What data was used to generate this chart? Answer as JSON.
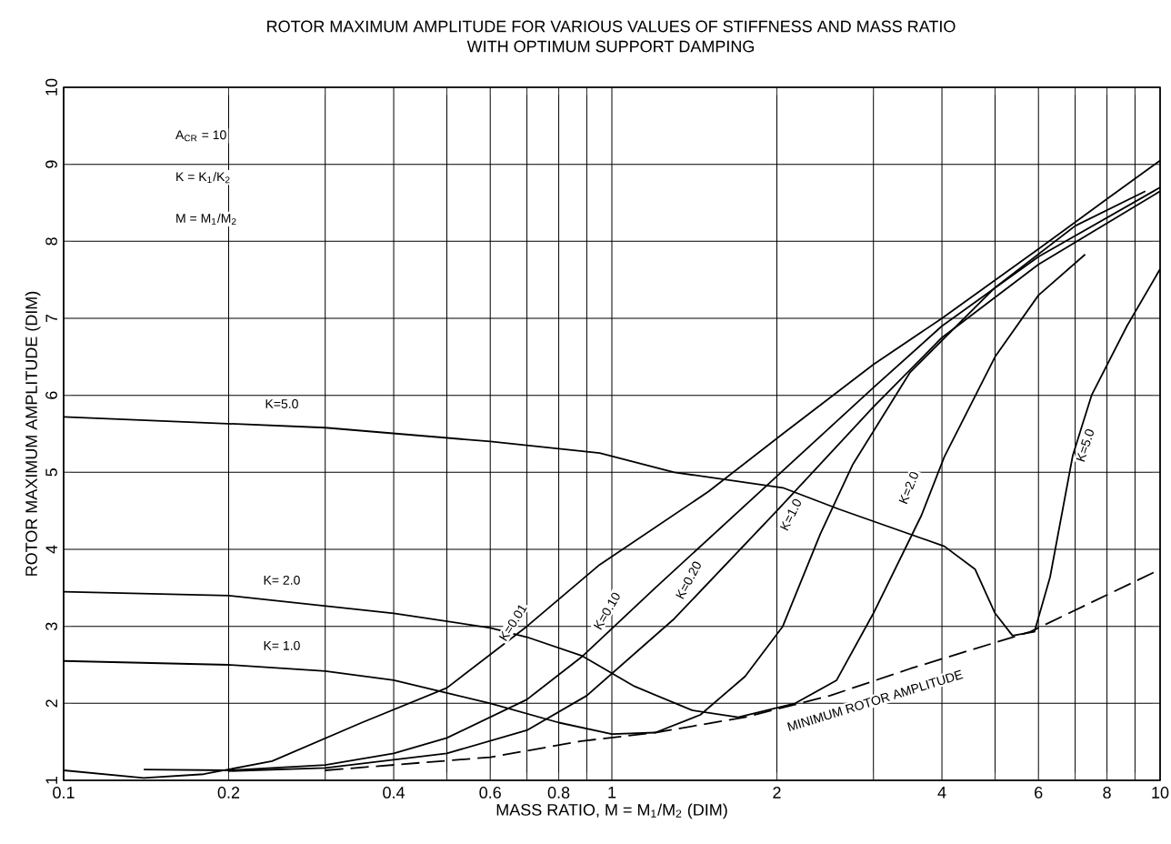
{
  "chart_data": {
    "type": "line",
    "title": "ROTOR MAXIMUM AMPLITUDE FOR VARIOUS VALUES OF STIFFNESS AND MASS RATIO",
    "subtitle": "WITH OPTIMUM SUPPORT DAMPING",
    "xlabel": "MASS RATIO, M = M$_{1}$/M$_{2}$ (DIM)",
    "ylabel": "ROTOR MAXIMUM AMPLITUDE (DIM)",
    "log": "x",
    "grid": true,
    "line_style": "solid",
    "xlim": [
      0.1,
      10
    ],
    "ylim": [
      1,
      10
    ],
    "xticks": [
      {
        "value": 0.1,
        "label": "0.1"
      },
      {
        "value": 0.2,
        "label": "0.2"
      },
      {
        "value": 0.3,
        "label": null
      },
      {
        "value": 0.4,
        "label": "0.4"
      },
      {
        "value": 0.5,
        "label": null
      },
      {
        "value": 0.6,
        "label": "0.6"
      },
      {
        "value": 0.7,
        "label": null
      },
      {
        "value": 0.8,
        "label": "0.8"
      },
      {
        "value": 0.9,
        "label": null
      },
      {
        "value": 1,
        "label": "1"
      },
      {
        "value": 2,
        "label": "2"
      },
      {
        "value": 3,
        "label": null
      },
      {
        "value": 4,
        "label": "4"
      },
      {
        "value": 5,
        "label": null
      },
      {
        "value": 6,
        "label": "6"
      },
      {
        "value": 7,
        "label": null
      },
      {
        "value": 8,
        "label": "8"
      },
      {
        "value": 9,
        "label": null
      },
      {
        "value": 10,
        "label": "10"
      }
    ],
    "yticks": [
      1,
      2,
      3,
      4,
      5,
      6,
      7,
      8,
      9,
      10
    ],
    "series": [
      {
        "color": "#000000",
        "x": [
          0.1,
          0.14,
          0.18,
          0.24,
          0.35,
          0.5,
          0.7,
          0.95,
          1.5,
          2.05,
          3,
          4,
          6,
          8,
          10
        ],
        "values": [
          1.13,
          1.03,
          1.08,
          1.25,
          1.75,
          2.2,
          3.0,
          3.8,
          4.75,
          5.5,
          6.4,
          7.0,
          7.9,
          8.55,
          9.05
        ]
      },
      {
        "color": "#000000",
        "x": [
          0.14,
          0.2,
          0.3,
          0.4,
          0.5,
          0.7,
          0.88,
          1.2,
          2,
          3,
          4,
          6,
          10
        ],
        "values": [
          1.14,
          1.13,
          1.2,
          1.35,
          1.55,
          2.05,
          2.6,
          3.5,
          4.95,
          6.1,
          6.9,
          7.8,
          8.7
        ]
      },
      {
        "color": "#000000",
        "x": [
          0.2,
          0.3,
          0.5,
          0.7,
          0.9,
          1.3,
          2,
          3,
          4,
          6,
          10
        ],
        "values": [
          1.12,
          1.16,
          1.35,
          1.65,
          2.1,
          3.1,
          4.5,
          5.85,
          6.75,
          7.7,
          8.65
        ]
      },
      {
        "color": "#000000",
        "x": [
          0.1,
          0.2,
          0.3,
          0.4,
          0.6,
          0.8,
          1.0,
          1.2,
          1.45,
          1.75,
          2.05,
          2.4,
          2.75,
          3.5,
          5,
          7,
          9.4
        ],
        "values": [
          2.55,
          2.5,
          2.42,
          2.3,
          2.0,
          1.75,
          1.6,
          1.62,
          1.85,
          2.35,
          3.0,
          4.2,
          5.1,
          6.3,
          7.4,
          8.2,
          8.65
        ]
      },
      {
        "color": "#000000",
        "x": [
          0.1,
          0.2,
          0.4,
          0.6,
          0.7,
          0.88,
          1.1,
          1.4,
          1.7,
          2.16,
          2.57,
          3.0,
          3.67,
          4.04,
          5,
          6,
          7.3
        ],
        "values": [
          3.45,
          3.4,
          3.17,
          2.98,
          2.86,
          2.62,
          2.22,
          1.91,
          1.82,
          2.0,
          2.3,
          3.17,
          4.44,
          5.2,
          6.5,
          7.3,
          7.83
        ]
      },
      {
        "color": "#000000",
        "x": [
          0.1,
          0.3,
          0.6,
          0.95,
          1.3,
          2.05,
          2.6,
          4.04,
          4.6,
          5.0,
          5.38,
          5.9,
          6.3,
          6.93,
          7.5,
          8.7,
          10
        ],
        "values": [
          5.72,
          5.58,
          5.4,
          5.25,
          5.0,
          4.8,
          4.52,
          4.04,
          3.74,
          3.17,
          2.88,
          2.93,
          3.64,
          5.22,
          6.0,
          6.9,
          7.64
        ]
      },
      {
        "color": "#000000",
        "line_style": "dashed",
        "x": [
          0.3,
          0.6,
          0.88,
          1.2,
          1.75,
          2.5,
          3.5,
          5.8,
          10
        ],
        "values": [
          1.13,
          1.3,
          1.51,
          1.62,
          1.82,
          2.1,
          2.45,
          2.93,
          3.74
        ]
      }
    ],
    "annotations": [
      "A$_{CR}$ = 10",
      "K = K$_{1}$/K$_{2}$",
      "M = M$_{1}$/M$_{2}$",
      {
        "text": "K=5.0",
        "x": 0.25,
        "y": 5.89
      },
      {
        "text": "K= 2.0",
        "x": 0.25,
        "y": 3.6
      },
      {
        "text": "K= 1.0",
        "x": 0.25,
        "y": 2.75
      },
      {
        "text": "K=0.01",
        "x": 0.66,
        "y": 3.05
      },
      {
        "text": "K=0.10",
        "x": 0.98,
        "y": 3.2
      },
      {
        "text": "K=0.20",
        "x": 1.38,
        "y": 3.6
      },
      {
        "text": "K=1.0",
        "x": 2.12,
        "y": 4.45
      },
      {
        "text": "K=2.0",
        "x": 3.48,
        "y": 4.8
      },
      {
        "text": "K=5.0",
        "x": 7.3,
        "y": 5.35
      },
      "MINIMUM ROTOR AMPLITUDE"
    ]
  }
}
